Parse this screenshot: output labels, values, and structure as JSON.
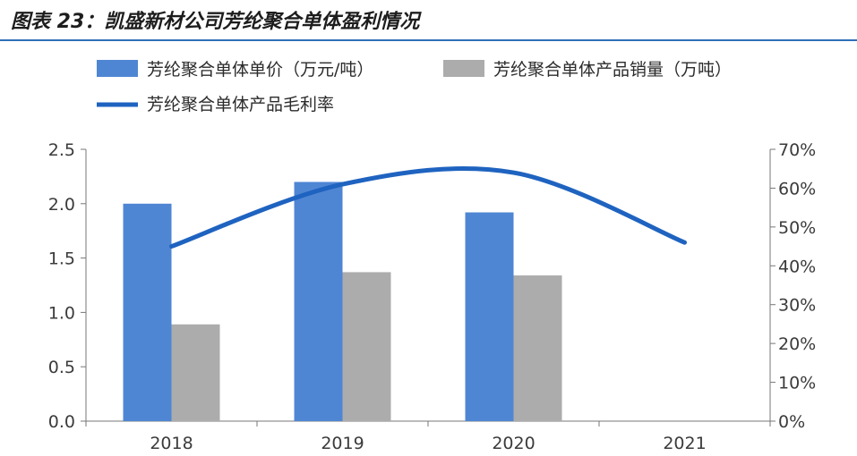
{
  "figure_title": "图表 23：凯盛新材公司芳纶聚合单体盈利情况",
  "colors": {
    "price_bar": "#4f86d3",
    "volume_bar": "#acacac",
    "margin_line": "#1f63c0",
    "axis": "#777777",
    "title_rule": "#2e6fb8"
  },
  "chart_data": {
    "type": "bar",
    "categories": [
      "2018",
      "2019",
      "2020",
      "2021"
    ],
    "series": [
      {
        "name": "芳纶聚合单体单价（万元/吨）",
        "type": "bar",
        "axis": "left",
        "values": [
          2.0,
          2.2,
          1.92,
          null
        ]
      },
      {
        "name": "芳纶聚合单体产品销量（万吨）",
        "type": "bar",
        "axis": "left",
        "values": [
          0.89,
          1.37,
          1.34,
          null
        ]
      },
      {
        "name": "芳纶聚合单体产品毛利率",
        "type": "line",
        "axis": "right",
        "values": [
          45,
          61,
          64,
          46
        ]
      }
    ],
    "ylim_left": [
      0,
      2.5
    ],
    "yticks_left": [
      "0.0",
      "0.5",
      "1.0",
      "1.5",
      "2.0",
      "2.5"
    ],
    "ylim_right": [
      0,
      70
    ],
    "yticks_right": [
      "0%",
      "10%",
      "20%",
      "30%",
      "40%",
      "50%",
      "60%",
      "70%"
    ],
    "legend_position": "top",
    "grid": false
  }
}
